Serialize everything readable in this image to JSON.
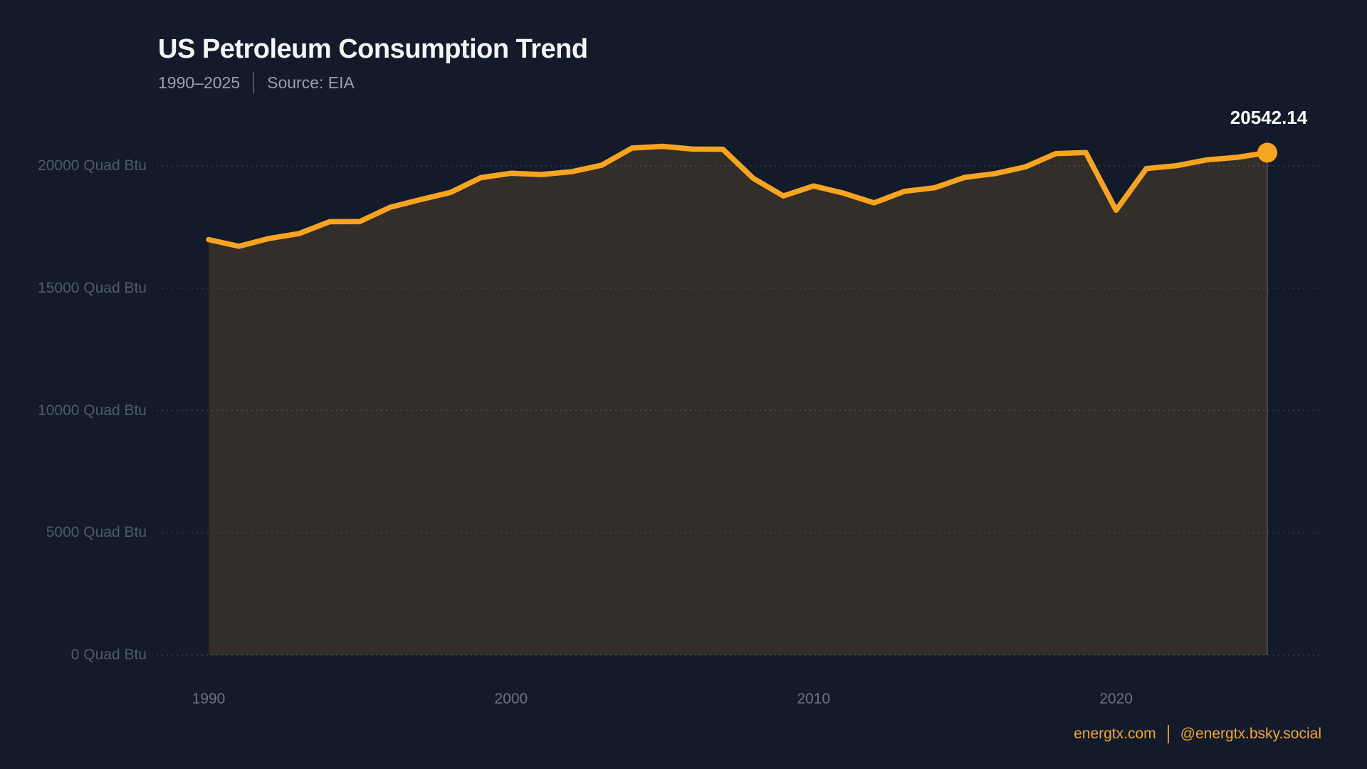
{
  "header": {
    "title": "US Petroleum Consumption Trend",
    "subtitle_range": "1990–2025",
    "subtitle_source": "Source: EIA"
  },
  "footer": {
    "site": "energtx.com",
    "social": "@energtx.bsky.social"
  },
  "chart_data": {
    "type": "area",
    "title": "US Petroleum Consumption Trend",
    "subtitle": "1990–2025 | Source: EIA",
    "unit": "Quad Btu",
    "x": [
      1990,
      1991,
      1992,
      1993,
      1994,
      1995,
      1996,
      1997,
      1998,
      1999,
      2000,
      2001,
      2002,
      2003,
      2004,
      2005,
      2006,
      2007,
      2008,
      2009,
      2010,
      2011,
      2012,
      2013,
      2014,
      2015,
      2016,
      2017,
      2018,
      2019,
      2020,
      2021,
      2022,
      2023,
      2024,
      2025
    ],
    "series": [
      {
        "name": "US Petroleum Consumption",
        "values": [
          16988,
          16714,
          17033,
          17237,
          17718,
          17725,
          18309,
          18620,
          18917,
          19519,
          19701,
          19649,
          19761,
          20033,
          20731,
          20802,
          20687,
          20680,
          19498,
          18771,
          19180,
          18882,
          18490,
          18961,
          19106,
          19531,
          19687,
          19958,
          20500,
          20543,
          18186,
          19891,
          20010,
          20246,
          20350,
          20542.14
        ]
      }
    ],
    "end_label": "20542.14",
    "y_ticks": [
      {
        "value": 0,
        "label": "0 Quad Btu"
      },
      {
        "value": 5000,
        "label": "5000 Quad Btu"
      },
      {
        "value": 10000,
        "label": "10000 Quad Btu"
      },
      {
        "value": 15000,
        "label": "15000 Quad Btu"
      },
      {
        "value": 20000,
        "label": "20000 Quad Btu"
      }
    ],
    "x_ticks": [
      1990,
      2000,
      2010,
      2020
    ],
    "ylim": [
      0,
      22000
    ],
    "xlim": [
      1990,
      2025
    ],
    "grid": "horizontal-dotted",
    "legend": "none"
  },
  "style": {
    "background": "#131B2B",
    "accent_orange": "#F7A421",
    "area_fill": "rgba(247,164,33,0.14)",
    "grid_color": "rgba(148,163,184,0.30)",
    "edge_line_color": "rgba(190,200,215,0.30)",
    "title_color": "#F4F6F8",
    "subtitle_color": "#96A0AB",
    "y_label_color": "#4E5A6A",
    "x_label_color": "#6A7383",
    "end_label_color": "#FFFFFF"
  }
}
